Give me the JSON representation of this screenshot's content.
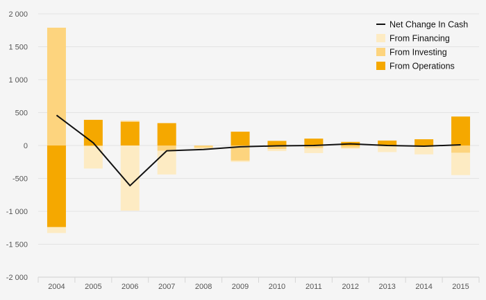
{
  "chart_data": {
    "type": "bar",
    "stacked": true,
    "title": "",
    "xlabel": "",
    "ylabel": "",
    "ylim": [
      -2000,
      2000
    ],
    "y_ticks": [
      2000,
      1500,
      1000,
      500,
      0,
      -500,
      -1000,
      -1500,
      -2000
    ],
    "y_tick_labels": [
      "2 000",
      "1 500",
      "1 000",
      "500",
      "0",
      "-500",
      "-1 000",
      "-1 500",
      "-2 000"
    ],
    "categories": [
      "2004",
      "2005",
      "2006",
      "2007",
      "2008",
      "2009",
      "2010",
      "2011",
      "2012",
      "2013",
      "2014",
      "2015"
    ],
    "series": [
      {
        "name": "From Operations",
        "kind": "bar",
        "color": "#f5a800",
        "values": [
          -1240,
          390,
          360,
          340,
          0,
          210,
          70,
          105,
          55,
          75,
          95,
          440
        ]
      },
      {
        "name": "From Investing",
        "kind": "bar",
        "color": "#fdd47e",
        "values": [
          1790,
          -10,
          15,
          -80,
          -35,
          -230,
          -55,
          -40,
          -35,
          -10,
          -20,
          -110
        ]
      },
      {
        "name": "From Financing",
        "kind": "bar",
        "color": "#fdebc3",
        "values": [
          -90,
          -340,
          -990,
          -360,
          -15,
          -20,
          -30,
          -75,
          -15,
          -90,
          -115,
          -340
        ]
      },
      {
        "name": "Net Change In Cash",
        "kind": "line",
        "color": "#111111",
        "values": [
          460,
          40,
          -610,
          -80,
          -60,
          -20,
          -5,
          0,
          25,
          0,
          -10,
          10
        ]
      }
    ],
    "legend": {
      "position": "top-right",
      "order": [
        "Net Change In Cash",
        "From Financing",
        "From Investing",
        "From Operations"
      ]
    },
    "grid": true
  }
}
